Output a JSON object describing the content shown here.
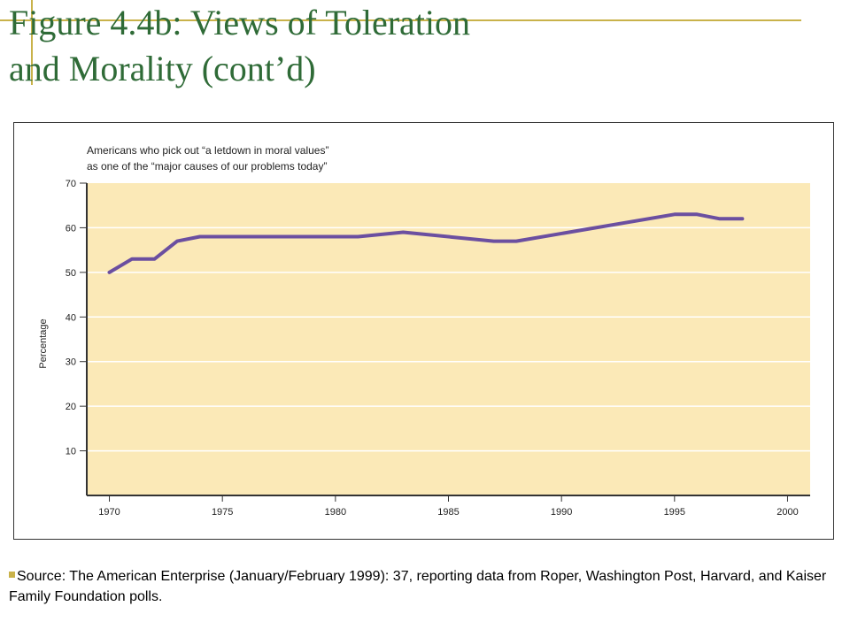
{
  "slide": {
    "title_line1": "Figure 4.4b: Views of Toleration",
    "title_line2": "and Morality (cont’d)",
    "source": "Source: The American Enterprise (January/February 1999): 37, reporting data from Roper, Washington Post, Harvard, and Kaiser Family Foundation polls."
  },
  "colors": {
    "title": "#2f6b37",
    "accent_rule": "#c9b24a",
    "plot_background": "#fbe9b7",
    "series_line": "#6b4fa0",
    "gridline": "#ffffff"
  },
  "chart_data": {
    "type": "line",
    "title_line1": "Americans who pick out “a letdown in moral values”",
    "title_line2": "as one of the “major causes of our problems today”",
    "xlabel": "",
    "ylabel": "Percentage",
    "xlim": [
      1969,
      2001
    ],
    "ylim": [
      0,
      70
    ],
    "xticks": [
      1970,
      1975,
      1980,
      1985,
      1990,
      1995,
      2000
    ],
    "yticks": [
      10,
      20,
      30,
      40,
      50,
      60,
      70
    ],
    "grid": true,
    "series": [
      {
        "x": [
          1970,
          1971,
          1972,
          1973,
          1974,
          1981,
          1983,
          1987,
          1988,
          1995,
          1996,
          1997,
          1998
        ],
        "y": [
          50,
          53,
          53,
          57,
          58,
          58,
          59,
          57,
          57,
          63,
          63,
          62,
          62
        ]
      }
    ]
  }
}
